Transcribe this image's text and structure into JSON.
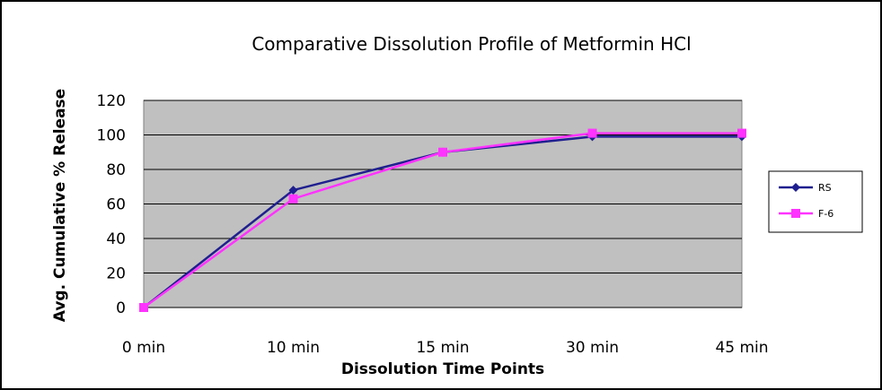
{
  "chart_data": {
    "type": "line",
    "title": "Comparative Dissolution Profile of Metformin HCl",
    "xlabel": "Dissolution Time Points",
    "ylabel": "Avg. Cumulative % Release",
    "categories": [
      "0 min",
      "10 min",
      "15 min",
      "30 min",
      "45 min"
    ],
    "ylim": [
      0,
      120
    ],
    "yticks": [
      0,
      20,
      40,
      60,
      80,
      100,
      120
    ],
    "grid": true,
    "legend_position": "right",
    "plot_background": "#c0c0c0",
    "series": [
      {
        "name": "RS",
        "values": [
          0,
          68,
          90,
          99,
          99
        ],
        "color": "#1f1f8f",
        "marker": "diamond"
      },
      {
        "name": "F-6",
        "values": [
          0,
          63,
          90,
          101,
          101
        ],
        "color": "#ff33ff",
        "marker": "square"
      }
    ]
  }
}
